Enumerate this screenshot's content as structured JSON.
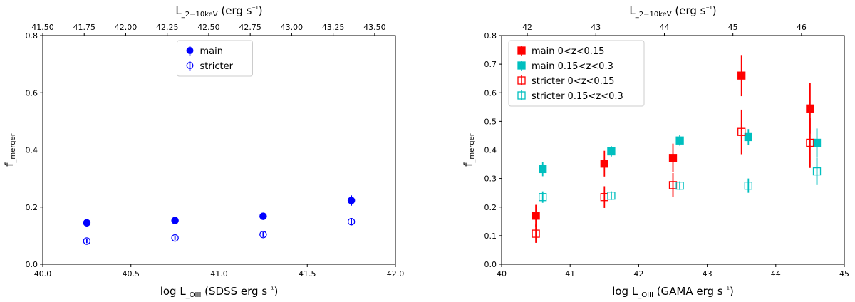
{
  "chart_data": [
    {
      "type": "scatter",
      "panel": "left",
      "xlabel": "log L_OIII (SDSS erg s⁻¹)",
      "ylabel": "f_merger",
      "top_xlabel": "L_2−10keV (erg s⁻¹)",
      "xlim": [
        40.0,
        42.0
      ],
      "ylim": [
        0.0,
        0.8
      ],
      "top_xlim": [
        41.5,
        43.625
      ],
      "x_ticks": [
        "40.0",
        "40.5",
        "41.0",
        "41.5",
        "42.0"
      ],
      "y_ticks": [
        "0.0",
        "0.2",
        "0.4",
        "0.6",
        "0.8"
      ],
      "top_ticks": [
        "41.50",
        "41.75",
        "42.00",
        "42.25",
        "42.50",
        "42.75",
        "43.00",
        "43.25",
        "43.50"
      ],
      "legend": {
        "position": "upper center",
        "entries": [
          "main",
          "stricter"
        ]
      },
      "series": [
        {
          "name": "main",
          "color": "#0000ff",
          "marker": "circle",
          "filled": true,
          "points": [
            {
              "x": 40.25,
              "y": 0.145,
              "err": 0.008
            },
            {
              "x": 40.75,
              "y": 0.153,
              "err": 0.008
            },
            {
              "x": 41.25,
              "y": 0.168,
              "err": 0.01
            },
            {
              "x": 41.75,
              "y": 0.223,
              "err": 0.018
            }
          ]
        },
        {
          "name": "stricter",
          "color": "#0000ff",
          "marker": "circle",
          "filled": false,
          "points": [
            {
              "x": 40.25,
              "y": 0.081,
              "err": 0.007
            },
            {
              "x": 40.75,
              "y": 0.092,
              "err": 0.007
            },
            {
              "x": 41.25,
              "y": 0.104,
              "err": 0.009
            },
            {
              "x": 41.75,
              "y": 0.149,
              "err": 0.013
            }
          ]
        }
      ]
    },
    {
      "type": "scatter",
      "panel": "right",
      "xlabel": "log L_OIII (GAMA erg s⁻¹)",
      "ylabel": "f_merger",
      "top_xlabel": "L_2−10keV (erg s⁻¹)",
      "xlim": [
        40,
        45
      ],
      "ylim": [
        0.0,
        0.8
      ],
      "top_xlim": [
        41.625,
        46.625
      ],
      "x_ticks": [
        "40",
        "41",
        "42",
        "43",
        "44",
        "45"
      ],
      "y_ticks": [
        "0.0",
        "0.1",
        "0.2",
        "0.3",
        "0.4",
        "0.5",
        "0.6",
        "0.7",
        "0.8"
      ],
      "top_ticks": [
        "42",
        "43",
        "44",
        "45",
        "46"
      ],
      "legend": {
        "position": "upper left",
        "entries": [
          "main 0<z<0.15",
          "main 0.15<z<0.3",
          "stricter 0<z<0.15",
          "stricter 0.15<z<0.3"
        ]
      },
      "series": [
        {
          "name": "main 0<z<0.15",
          "color": "#ff0000",
          "marker": "square",
          "filled": true,
          "points": [
            {
              "x": 40.5,
              "y": 0.17,
              "err": 0.038
            },
            {
              "x": 41.5,
              "y": 0.352,
              "err": 0.045
            },
            {
              "x": 42.5,
              "y": 0.372,
              "err": 0.05
            },
            {
              "x": 43.5,
              "y": 0.66,
              "err": 0.072
            },
            {
              "x": 44.5,
              "y": 0.545,
              "err": 0.088
            }
          ]
        },
        {
          "name": "main 0.15<z<0.3",
          "color": "#00bfbf",
          "marker": "square",
          "filled": true,
          "points": [
            {
              "x": 40.6,
              "y": 0.333,
              "err": 0.025
            },
            {
              "x": 41.6,
              "y": 0.395,
              "err": 0.018
            },
            {
              "x": 42.6,
              "y": 0.433,
              "err": 0.018
            },
            {
              "x": 43.6,
              "y": 0.445,
              "err": 0.028
            },
            {
              "x": 44.6,
              "y": 0.425,
              "err": 0.05
            }
          ]
        },
        {
          "name": "stricter 0<z<0.15",
          "color": "#ff0000",
          "marker": "square",
          "filled": false,
          "points": [
            {
              "x": 40.5,
              "y": 0.107,
              "err": 0.032
            },
            {
              "x": 41.5,
              "y": 0.235,
              "err": 0.038
            },
            {
              "x": 42.5,
              "y": 0.277,
              "err": 0.042
            },
            {
              "x": 43.5,
              "y": 0.463,
              "err": 0.078
            },
            {
              "x": 44.5,
              "y": 0.425,
              "err": 0.088
            }
          ]
        },
        {
          "name": "stricter 0.15<z<0.3",
          "color": "#00bfbf",
          "marker": "square",
          "filled": false,
          "points": [
            {
              "x": 40.6,
              "y": 0.235,
              "err": 0.02
            },
            {
              "x": 41.6,
              "y": 0.24,
              "err": 0.015
            },
            {
              "x": 42.6,
              "y": 0.275,
              "err": 0.015
            },
            {
              "x": 43.6,
              "y": 0.275,
              "err": 0.025
            },
            {
              "x": 44.6,
              "y": 0.325,
              "err": 0.048
            }
          ]
        }
      ]
    }
  ]
}
